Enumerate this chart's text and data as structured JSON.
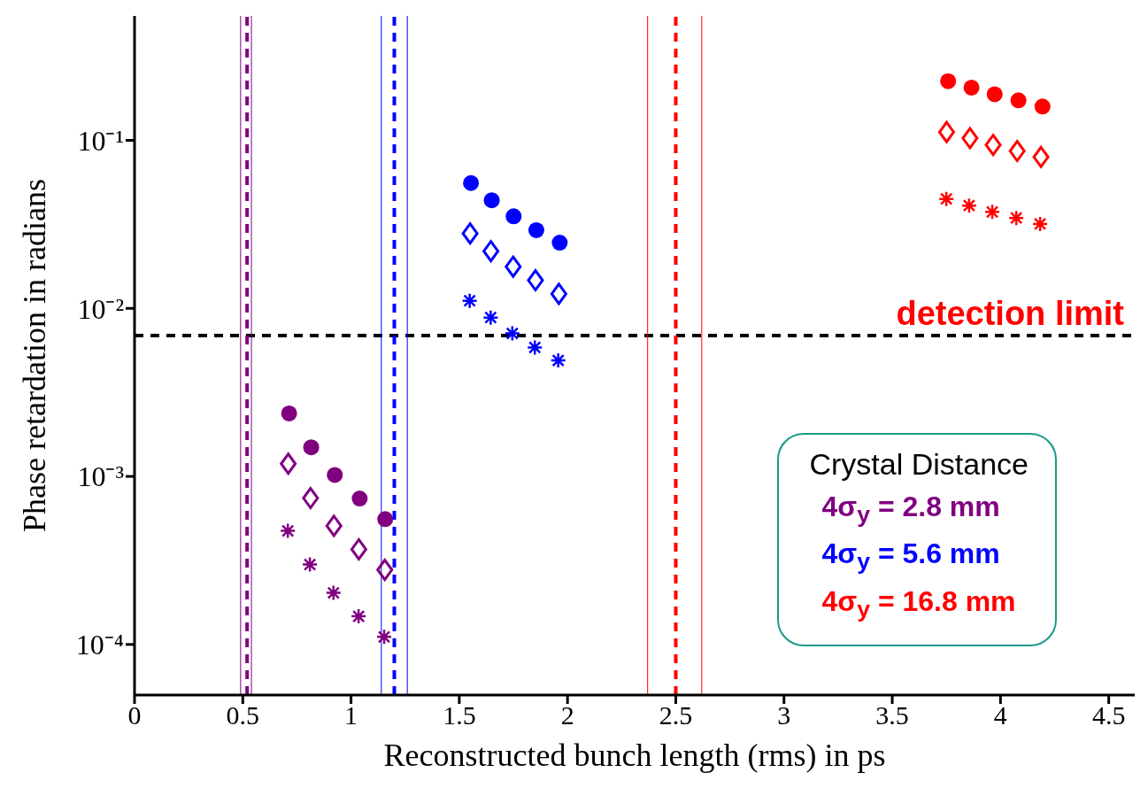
{
  "chart_data": {
    "type": "scatter",
    "xlabel": "Reconstructed bunch length (rms) in ps",
    "ylabel": "Phase retardation in radians",
    "log": "y",
    "xlim": [
      0,
      4.62
    ],
    "xticks": [
      0,
      0.5,
      1,
      1.5,
      2,
      2.5,
      3,
      3.5,
      4,
      4.5
    ],
    "ylim": [
      5e-05,
      0.55
    ],
    "yticks": [
      {
        "value": 0.1,
        "label": "10⁻¹"
      },
      {
        "value": 0.01,
        "label": "10⁻²"
      },
      {
        "value": 0.001,
        "label": "10⁻³"
      },
      {
        "value": 0.0001,
        "label": "10⁻⁴"
      }
    ],
    "grid": false,
    "legend": "bottom right",
    "legend_title": "Crystal Distance",
    "series": [
      {
        "name": "4σ$_{y}$ = 2.8 mm",
        "color": "#800080",
        "marker": "circle",
        "x": [
          0.714,
          0.816,
          0.925,
          1.04,
          1.158
        ],
        "values": [
          0.00237,
          0.00149,
          0.00102,
          0.000738,
          0.000557
        ]
      },
      {
        "color": "#800080",
        "marker": "diamond",
        "x": [
          0.71,
          0.813,
          0.921,
          1.036,
          1.156
        ],
        "values": [
          0.00119,
          0.000743,
          0.000508,
          0.000368,
          0.000278
        ]
      },
      {
        "color": "#800080",
        "marker": "cross",
        "x": [
          0.708,
          0.81,
          0.919,
          1.035,
          1.153
        ],
        "values": [
          0.000474,
          0.000299,
          0.000203,
          0.000147,
          0.000111
        ]
      },
      {
        "name": "4σ$_{y}$ = 5.6 mm",
        "color": "#0000ff",
        "marker": "circle",
        "x": [
          1.554,
          1.65,
          1.751,
          1.856,
          1.964
        ],
        "values": [
          0.0557,
          0.044,
          0.0353,
          0.0292,
          0.0246
        ]
      },
      {
        "color": "#0000ff",
        "marker": "diamond",
        "x": [
          1.55,
          1.646,
          1.749,
          1.852,
          1.96
        ],
        "values": [
          0.0279,
          0.0219,
          0.0177,
          0.0147,
          0.0122
        ]
      },
      {
        "color": "#0000ff",
        "marker": "cross",
        "x": [
          1.548,
          1.645,
          1.745,
          1.849,
          1.957
        ],
        "values": [
          0.0111,
          0.00881,
          0.0071,
          0.00585,
          0.0049
        ]
      },
      {
        "name": "4σ$_{y}$ = 16.8 mm",
        "color": "#ff0000",
        "marker": "circle",
        "x": [
          3.758,
          3.866,
          3.973,
          4.083,
          4.194
        ],
        "values": [
          0.225,
          0.206,
          0.188,
          0.173,
          0.159
        ]
      },
      {
        "color": "#ff0000",
        "marker": "diamond",
        "x": [
          3.751,
          3.859,
          3.966,
          4.077,
          4.187
        ],
        "values": [
          0.112,
          0.103,
          0.0939,
          0.0864,
          0.0796
        ]
      },
      {
        "color": "#ff0000",
        "marker": "cross",
        "x": [
          3.75,
          3.855,
          3.962,
          4.073,
          4.183
        ],
        "values": [
          0.0448,
          0.0409,
          0.0375,
          0.0345,
          0.0318
        ]
      }
    ],
    "ref_lines": [
      {
        "axis": "y",
        "value": 0.0069,
        "label": "detection limit",
        "color": "#000000",
        "line_style": "dashed"
      },
      {
        "axis": "x",
        "value": 0.52,
        "color": "#800080",
        "line_style": "dashed"
      },
      {
        "axis": "x",
        "value": 0.49,
        "color": "#800080",
        "line_style": "solid"
      },
      {
        "axis": "x",
        "value": 0.54,
        "color": "#800080",
        "line_style": "solid"
      },
      {
        "axis": "x",
        "value": 1.2,
        "color": "#0000ff",
        "line_style": "dashed"
      },
      {
        "axis": "x",
        "value": 1.14,
        "color": "#0000ff",
        "line_style": "solid"
      },
      {
        "axis": "x",
        "value": 1.26,
        "color": "#0000ff",
        "line_style": "solid"
      },
      {
        "axis": "x",
        "value": 2.5,
        "color": "#ff0000",
        "line_style": "dashed"
      },
      {
        "axis": "x",
        "value": 2.37,
        "color": "#ff0000",
        "line_style": "solid"
      },
      {
        "axis": "x",
        "value": 2.62,
        "color": "#ff0000",
        "line_style": "solid"
      }
    ]
  }
}
